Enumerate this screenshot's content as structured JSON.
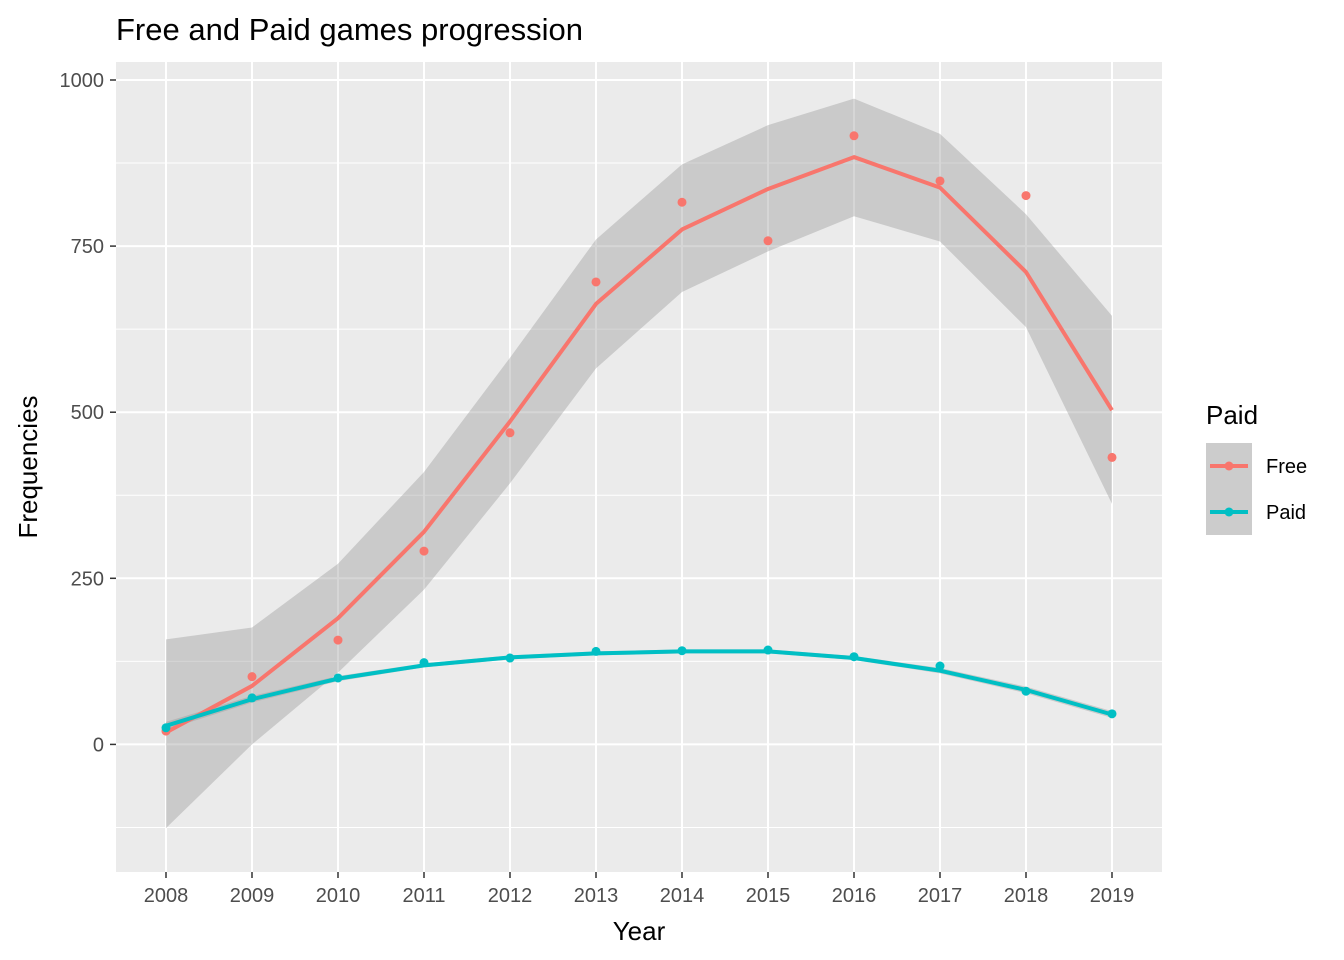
{
  "chart_data": {
    "type": "line",
    "title": "Free and Paid games progression",
    "xlabel": "Year",
    "ylabel": "Frequencies",
    "x": [
      2008,
      2009,
      2010,
      2011,
      2012,
      2013,
      2014,
      2015,
      2016,
      2017,
      2018,
      2019
    ],
    "x_tick_labels": [
      "2008",
      "2009",
      "2010",
      "2011",
      "2012",
      "2013",
      "2014",
      "2015",
      "2016",
      "2017",
      "2018",
      "2019"
    ],
    "ylim": [
      -180,
      1000
    ],
    "y_ticks": [
      0,
      250,
      500,
      750,
      1000
    ],
    "y_tick_labels": [
      "0",
      "250",
      "500",
      "750",
      "1000"
    ],
    "grid": true,
    "legend": {
      "title": "Paid",
      "position": "right"
    },
    "series": [
      {
        "name": "Free",
        "color": "#F8766D",
        "points": [
          20,
          102,
          157,
          291,
          469,
          696,
          816,
          758,
          916,
          848,
          826,
          432
        ],
        "smooth": [
          18,
          88,
          190,
          320,
          486,
          663,
          775,
          836,
          884,
          838,
          711,
          503
        ],
        "ci_lower": [
          -126,
          0,
          108,
          233,
          393,
          566,
          681,
          742,
          795,
          757,
          628,
          362
        ],
        "ci_upper": [
          158,
          176,
          272,
          410,
          582,
          760,
          873,
          932,
          972,
          919,
          798,
          645
        ]
      },
      {
        "name": "Paid",
        "color": "#00BFC4",
        "points": [
          25,
          70,
          100,
          123,
          130,
          140,
          141,
          142,
          132,
          118,
          80,
          46
        ],
        "smooth": [
          28,
          68,
          99,
          119,
          131,
          137,
          140,
          140,
          130,
          111,
          82,
          45
        ],
        "ci_lower": [
          22,
          63,
          95,
          116,
          128,
          134,
          137,
          137,
          127,
          107,
          77,
          40
        ],
        "ci_upper": [
          34,
          73,
          103,
          122,
          134,
          140,
          143,
          143,
          133,
          115,
          87,
          50
        ]
      }
    ]
  }
}
